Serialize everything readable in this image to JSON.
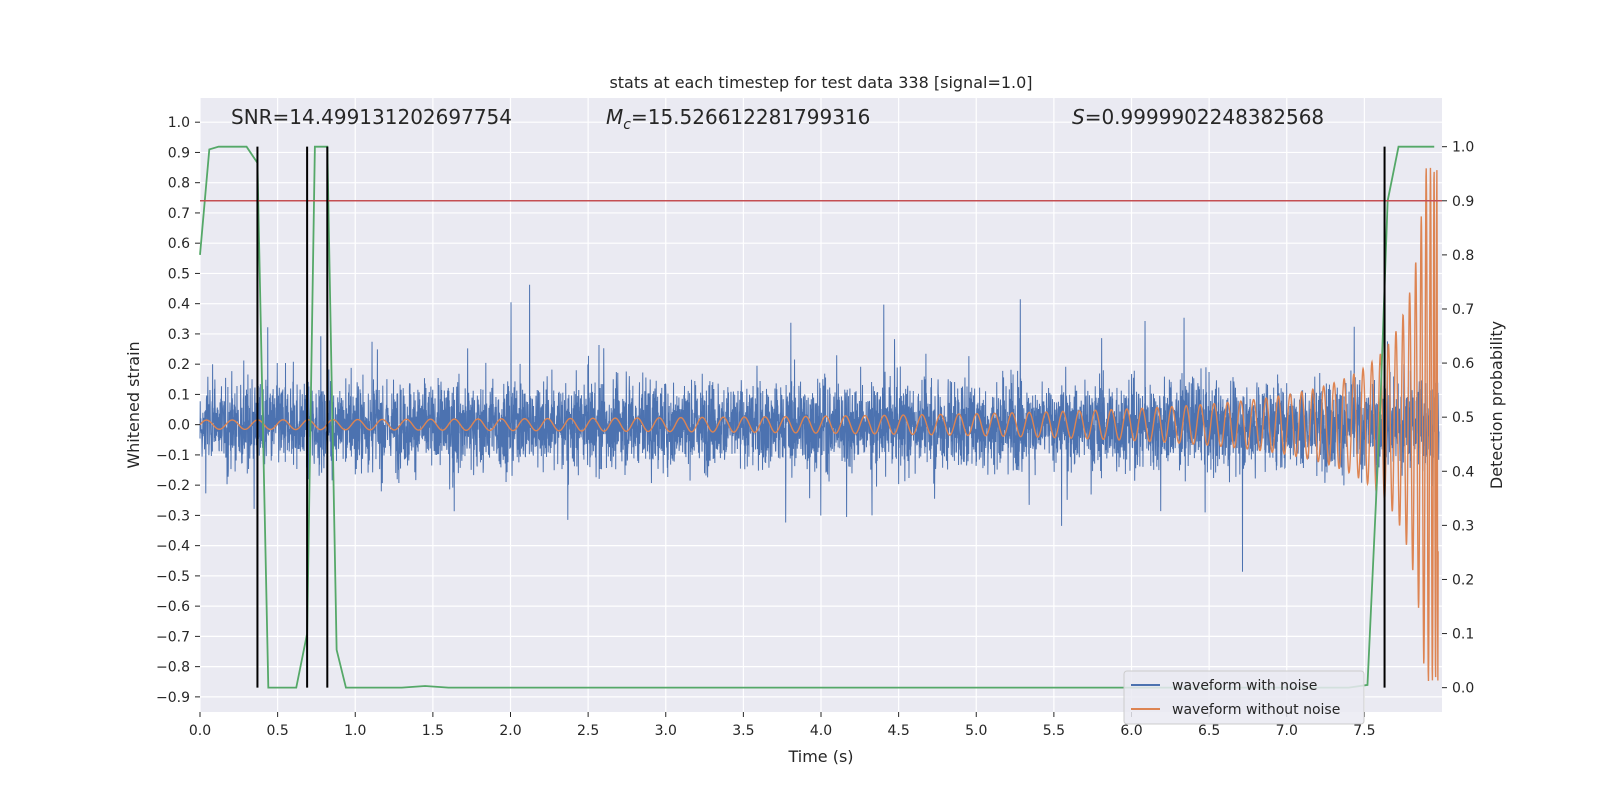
{
  "chart_data": {
    "type": "line",
    "title": "stats at each timestep for test data 338 [signal=1.0]",
    "xlabel": "Time (s)",
    "ylabel": "Whitened strain",
    "y2label": "Detection probability",
    "xlim": [
      0.0,
      8.0
    ],
    "ylim": [
      -0.95,
      1.08
    ],
    "y2lim": [
      -0.045,
      1.09
    ],
    "x_ticks": [
      0.0,
      0.5,
      1.0,
      1.5,
      2.0,
      2.5,
      3.0,
      3.5,
      4.0,
      4.5,
      5.0,
      5.5,
      6.0,
      6.5,
      7.0,
      7.5
    ],
    "y_ticks": [
      -0.9,
      -0.8,
      -0.7,
      -0.6,
      -0.5,
      -0.4,
      -0.3,
      -0.2,
      -0.1,
      0.0,
      0.1,
      0.2,
      0.3,
      0.4,
      0.5,
      0.6,
      0.7,
      0.8,
      0.9,
      1.0
    ],
    "y2_ticks": [
      0.0,
      0.1,
      0.2,
      0.3,
      0.4,
      0.5,
      0.6,
      0.7,
      0.8,
      0.9,
      1.0
    ],
    "grid": true,
    "legend_position": "bottom-right",
    "annotations": {
      "snr": "SNR=14.499131202697754",
      "mc_symbol": "M",
      "mc_sub": "c",
      "mc_value": "=15.526612281799316",
      "s_symbol": "S",
      "s_value": "=0.9999902248382568"
    },
    "series": [
      {
        "name": "waveform with noise",
        "color": "#4c72b0",
        "axis": "left",
        "kind": "noise",
        "amplitude_band": [
          -0.62,
          0.72
        ],
        "note": "dense noisy strain signal spanning full time range"
      },
      {
        "name": "waveform without noise",
        "color": "#dd8452",
        "axis": "left",
        "kind": "chirp",
        "start_amplitude": 0.015,
        "peak_amplitude": 0.85,
        "merger_time": 7.98
      },
      {
        "name": "detection probability",
        "color": "#55a868",
        "axis": "right",
        "in_legend": false,
        "x": [
          0.0,
          0.06,
          0.12,
          0.3,
          0.37,
          0.44,
          0.62,
          0.69,
          0.74,
          0.78,
          0.82,
          0.88,
          0.94,
          1.3,
          1.45,
          1.6,
          7.4,
          7.52,
          7.6,
          7.65,
          7.72,
          7.95
        ],
        "y": [
          0.8,
          0.995,
          1.0,
          1.0,
          0.97,
          0.0,
          0.0,
          0.1,
          1.0,
          1.0,
          1.0,
          0.07,
          0.0,
          0.0,
          0.003,
          0.0,
          0.0,
          0.005,
          0.5,
          0.9,
          1.0,
          1.0
        ]
      }
    ],
    "threshold": {
      "value": 0.9,
      "axis": "right",
      "color": "#c44e52"
    },
    "event_markers": [
      0.37,
      0.69,
      0.82,
      7.63
    ]
  }
}
